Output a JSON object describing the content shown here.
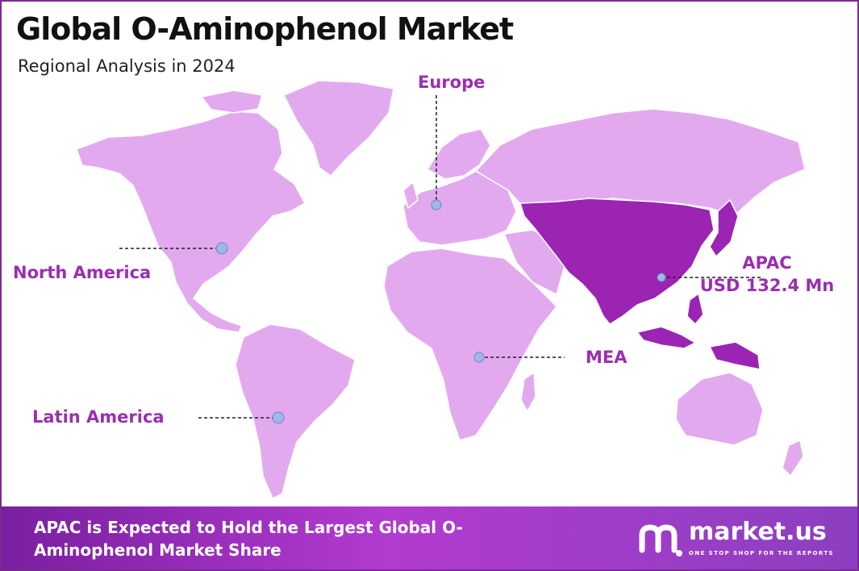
{
  "title": "Global O-Aminophenol Market",
  "subtitle": "Regional Analysis in 2024",
  "colors": {
    "land": "#e3a9ee",
    "highlight": "#9b24b3",
    "label": "#9a2fb0",
    "marker": "#9fb7e8",
    "footer_start": "#7a1fa0",
    "footer_end": "#8c3fc0"
  },
  "regions": {
    "europe": {
      "label": "Europe"
    },
    "north_america": {
      "label": "North America"
    },
    "latin_america": {
      "label": "Latin America"
    },
    "mea": {
      "label": "MEA"
    },
    "apac": {
      "label": "APAC",
      "value": "USD 132.4 Mn",
      "highlighted": true
    }
  },
  "footer": {
    "text": "APAC is Expected to Hold the Largest Global O-Aminophenol Market Share"
  },
  "brand": {
    "name": "market.us",
    "tagline": "ONE STOP SHOP FOR THE REPORTS",
    "icon": "market-us-logo-icon"
  }
}
